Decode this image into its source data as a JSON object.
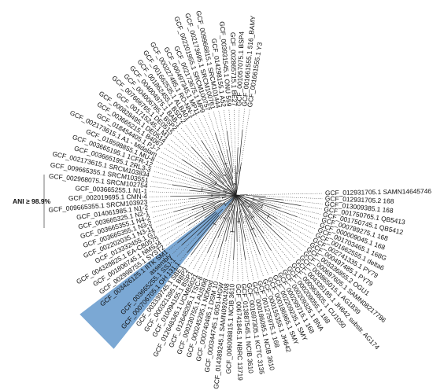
{
  "annotation": {
    "ani_label": "ANI ≥ 98.9%",
    "highlight_color": "#6d9ecf"
  },
  "leaves": [
    {
      "label": "GCF_012931705.1 SAMN14645746"
    },
    {
      "label": "GCF_012931705.2 168"
    },
    {
      "label": "GCF_013009385.1 168"
    },
    {
      "label": "GCF_001750765.1 QB5413"
    },
    {
      "label": "GCF_001750745.1 QB5412"
    },
    {
      "label": "GCF_000789275.1 168"
    },
    {
      "label": "GCF_000009045.1 168"
    },
    {
      "label": "GCF_001703465.1 168G"
    },
    {
      "label": "GCF_001662555.1 delta6"
    },
    {
      "label": "GCF_002741335.1 PY79"
    },
    {
      "label": "GCF_000497485.1 PY79"
    },
    {
      "label": "GCF_003336855.2 OGU1"
    },
    {
      "label": "GCF_000697605.1 SAMN08217786"
    },
    {
      "label": "GCF_000865015.1 AG1839"
    },
    {
      "label": "GCF_004335195.1 JH642 substr. AG174"
    },
    {
      "label": "GCF_000963605.1 CU1050"
    },
    {
      "label": "GCF_000209055.1 168"
    },
    {
      "label": "GCF_000209325.1 BNA"
    },
    {
      "label": "GCF_000299715.1 168"
    },
    {
      "label": "GCF_002209235.1 SMY"
    },
    {
      "label": "GCF_000186965.1 SMY"
    },
    {
      "label": "GCF_000155355.1 JH642"
    },
    {
      "label": "GCF_001275975.1 168"
    },
    {
      "label": "GCF_000186085.1 NCIB 3610"
    },
    {
      "label": "GCF_001697305.1 KCTC 3135"
    },
    {
      "label": "GCF_013887545.1 NCIB 3610"
    },
    {
      "label": "GCF_006741845.1 NBRC 13719"
    },
    {
      "label": "GCF_006098815.1 NCIB 3610"
    },
    {
      "label": "GCF_014389245.1 SAMN09204208"
    },
    {
      "label": "GCF_000344745.1 6051-HGW"
    },
    {
      "label": "GCF_000740485.1 DSM 10"
    },
    {
      "label": "GCF_000245295.1 NDfood"
    },
    {
      "label": "GCF_000230755.1 AUSI98"
    },
    {
      "label": "GCF_012648205.1 TSC-8"
    },
    {
      "label": "GCF_012648345.1 UCMB5021"
    },
    {
      "label": "GCF_010094155.1 BSP1"
    },
    {
      "label": "GCF_000321395.1 BBP2"
    },
    {
      "label": "GCF_003339745.1 SBE1"
    },
    {
      "label": "GCF_000706705.1 OH 131.1"
    },
    {
      "label": "GCF_003665255.1 SSJ-1"
    },
    {
      "label": "assembly"
    },
    {
      "label": "GCF_003426125.1 IITK SM1"
    },
    {
      "label": "GCF_002998755.1 SYST2"
    },
    {
      "label": "GCF_001806745.1 NMSJ4"
    },
    {
      "label": "GCF_004328825.1 EA-CB0575"
    },
    {
      "label": "GCF_013332455.1 G7"
    },
    {
      "label": "GCF_002202035.1 N3-11"
    },
    {
      "label": "GCF_003665355.1 N3-2"
    },
    {
      "label": "GCF_003665355.1 N4-2"
    },
    {
      "label": "GCF_003665325.1 N2-1"
    },
    {
      "label": "GCF_014061985.1 N1-2"
    },
    {
      "label": "GCF_009665355.1 SRCM103923"
    },
    {
      "label": "GCF_002019695.1 CMN-4"
    },
    {
      "label": "GCF_003665255.1 N1-1"
    },
    {
      "label": "GCF_002968075.1 SRCM102754"
    },
    {
      "label": "GCF_009665355.1 SRCM103551"
    },
    {
      "label": "GCF_002173615.1 SRCM103834"
    },
    {
      "label": "GCF_003665195.1 2RL3-3"
    },
    {
      "label": "GCF_003665195.1 1CFR-12"
    },
    {
      "label": "GCF_018598855.1 MU-8"
    },
    {
      "label": "GCF_002173615.1 A1 - Midalam"
    },
    {
      "label": "GCF_018454405.1 PJ-7"
    },
    {
      "label": "GCF_003665215.1 B4067"
    },
    {
      "label": "GCF_000828495.1 DE0514"
    },
    {
      "label": "GCF_001715245.1 M1"
    },
    {
      "label": "GCF_007666765.1 DE0515"
    },
    {
      "label": "GCF_004006785.1 BSP2"
    },
    {
      "label": "GCF_004004975.1 BAB-1"
    },
    {
      "label": "GCF_001862455.1 BSD-2"
    },
    {
      "label": "GCF_001662535.1 ALBA01"
    },
    {
      "label": "GCF_000227485.1 RO-NN-1"
    },
    {
      "label": "GCF_000497345.1 MP11"
    },
    {
      "label": "GCF_002173675.1 MP9"
    },
    {
      "label": "GCF_002201955.1 SRCM100757"
    },
    {
      "label": "GCF_002173695.1 SRCM100761"
    },
    {
      "label": "GCF_009966815.1 SRCM101444"
    },
    {
      "label": "GCF_014298155.1 A52"
    },
    {
      "label": "GCF_003931545.1 ONU 559"
    },
    {
      "label": "GCF_002865715.1 BE27"
    },
    {
      "label": "GCF_001057075.1 BSP4"
    },
    {
      "label": "GCF_001661555.1 516_BAMY"
    },
    {
      "label": "GCF_001661555.1 Y3"
    }
  ]
}
